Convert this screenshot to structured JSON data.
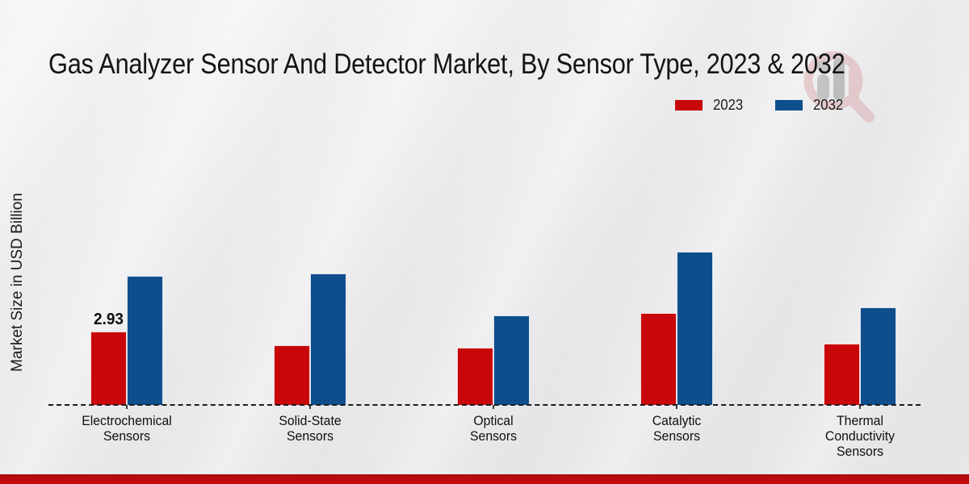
{
  "page": {
    "background_color": "#eaeaec",
    "footer_accent_color": "#c90a0d",
    "watermark_icon": "magnifier-bar-chart-logo"
  },
  "chart_data": {
    "type": "bar",
    "title": "Gas Analyzer Sensor And Detector Market, By Sensor Type, 2023 & 2032",
    "xlabel": "",
    "ylabel": "Market Size in USD Billion",
    "categories": [
      "Electrochemical Sensors",
      "Solid-State Sensors",
      "Optical Sensors",
      "Catalytic Sensors",
      "Thermal Conductivity Sensors"
    ],
    "category_lines": [
      [
        "Electrochemical",
        "Sensors"
      ],
      [
        "Solid-State",
        "Sensors"
      ],
      [
        "Optical",
        "Sensors"
      ],
      [
        "Catalytic",
        "Sensors"
      ],
      [
        "Thermal",
        "Conductivity",
        "Sensors"
      ]
    ],
    "series": [
      {
        "name": "2023",
        "color": "#c7070a",
        "values": [
          2.93,
          2.37,
          2.28,
          3.67,
          2.46
        ]
      },
      {
        "name": "2032",
        "color": "#0f4e8c",
        "values": [
          5.15,
          5.25,
          3.58,
          6.11,
          3.9
        ]
      }
    ],
    "data_labels": [
      {
        "series": "2023",
        "category_index": 0,
        "text": "2.93"
      }
    ],
    "ylim": [
      0,
      6.5
    ],
    "grid": false,
    "y_axis_ticks_visible": false,
    "baseline_style": "dashed",
    "legend_position": "top-right"
  }
}
